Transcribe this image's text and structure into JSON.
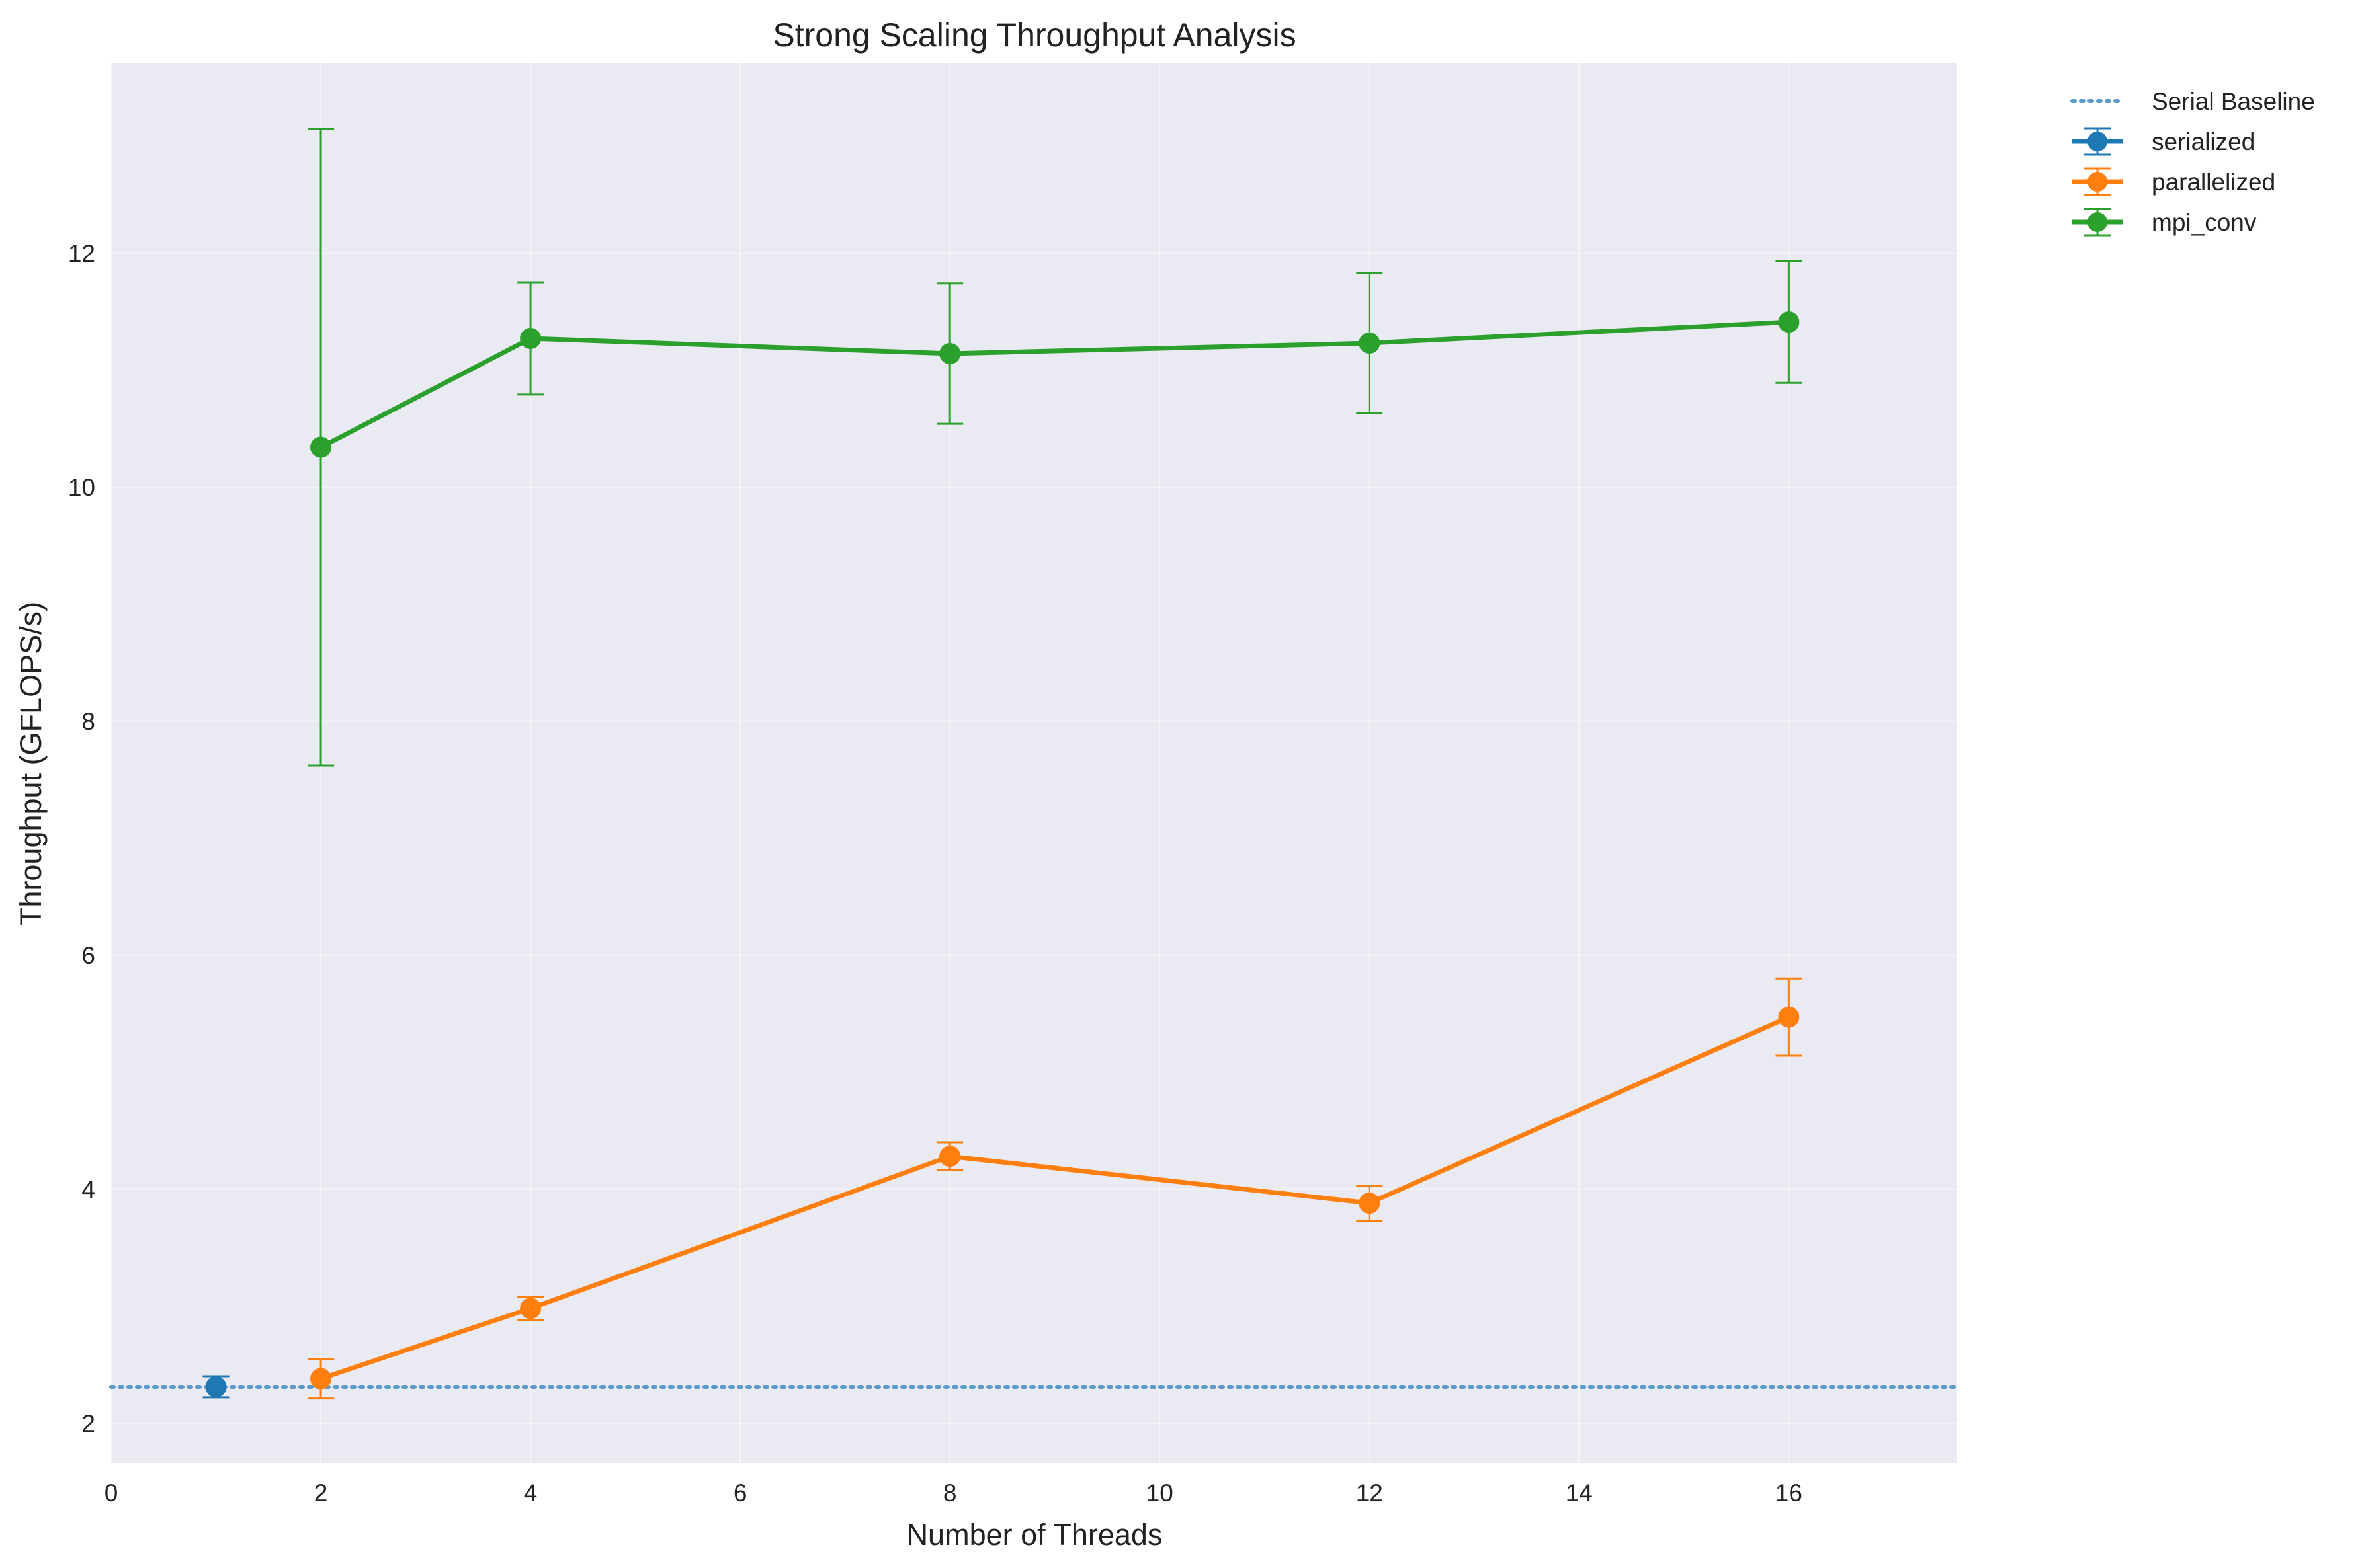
{
  "chart_data": {
    "type": "line",
    "title": "Strong Scaling Throughput Analysis",
    "xlabel": "Number of Threads",
    "ylabel": "Throughput (GFLOPS/s)",
    "xlim": [
      0,
      17.6
    ],
    "ylim": [
      1.66,
      13.62
    ],
    "x_ticks": [
      0,
      2,
      4,
      6,
      8,
      10,
      12,
      14,
      16
    ],
    "y_ticks": [
      2,
      4,
      6,
      8,
      10,
      12
    ],
    "grid": true,
    "legend_position": "outside upper right",
    "baseline": {
      "name": "Serial Baseline",
      "value": 2.31,
      "color": "#5b9bc9",
      "style": "dotted"
    },
    "series": [
      {
        "name": "serialized",
        "color": "#1f77b4",
        "points": [
          {
            "x": 1,
            "y": 2.31,
            "err": 0.09
          }
        ]
      },
      {
        "name": "parallelized",
        "color": "#ff7f0e",
        "points": [
          {
            "x": 2,
            "y": 2.38,
            "err": 0.17
          },
          {
            "x": 4,
            "y": 2.98,
            "err": 0.1
          },
          {
            "x": 8,
            "y": 4.28,
            "err": 0.12
          },
          {
            "x": 12,
            "y": 3.88,
            "err": 0.15
          },
          {
            "x": 16,
            "y": 5.47,
            "err": 0.33
          }
        ]
      },
      {
        "name": "mpi_conv",
        "color": "#2ca02c",
        "points": [
          {
            "x": 2,
            "y": 10.34,
            "err": 2.72
          },
          {
            "x": 4,
            "y": 11.27,
            "err": 0.48
          },
          {
            "x": 8,
            "y": 11.14,
            "err": 0.6
          },
          {
            "x": 12,
            "y": 11.23,
            "err": 0.6
          },
          {
            "x": 16,
            "y": 11.41,
            "err": 0.52
          }
        ]
      }
    ]
  },
  "colors": {
    "plot_background": "#eaeaf2",
    "grid": "#ffffff"
  }
}
